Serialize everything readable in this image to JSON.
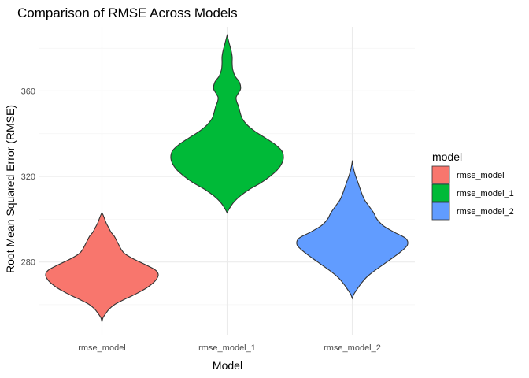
{
  "chart_data": {
    "type": "violin",
    "title": "Comparison of RMSE Across Models",
    "xlabel": "Model",
    "ylabel": "Root Mean Squared Error (RMSE)",
    "ylim": [
      246,
      390
    ],
    "yticks": [
      280,
      320,
      360
    ],
    "grid": true,
    "legend": {
      "title": "model",
      "placement": "right"
    },
    "categories": [
      "rmse_model",
      "rmse_model_1",
      "rmse_model_2"
    ],
    "series": [
      {
        "name": "rmse_model",
        "color": "#F8766D",
        "min": 252,
        "max": 303,
        "density": [
          [
            252,
            0.0
          ],
          [
            254,
            0.02
          ],
          [
            256,
            0.07
          ],
          [
            258,
            0.13
          ],
          [
            260,
            0.22
          ],
          [
            262,
            0.36
          ],
          [
            264,
            0.52
          ],
          [
            266,
            0.67
          ],
          [
            268,
            0.8
          ],
          [
            270,
            0.9
          ],
          [
            272,
            0.97
          ],
          [
            274,
            1.0
          ],
          [
            276,
            0.96
          ],
          [
            278,
            0.83
          ],
          [
            280,
            0.67
          ],
          [
            282,
            0.52
          ],
          [
            284,
            0.4
          ],
          [
            286,
            0.34
          ],
          [
            288,
            0.3
          ],
          [
            290,
            0.26
          ],
          [
            292,
            0.22
          ],
          [
            294,
            0.16
          ],
          [
            296,
            0.12
          ],
          [
            298,
            0.08
          ],
          [
            300,
            0.05
          ],
          [
            302,
            0.02
          ],
          [
            303,
            0.0
          ]
        ]
      },
      {
        "name": "rmse_model_1",
        "color": "#00BA38",
        "min": 303,
        "max": 386,
        "density": [
          [
            303,
            0.0
          ],
          [
            305,
            0.04
          ],
          [
            308,
            0.12
          ],
          [
            311,
            0.24
          ],
          [
            314,
            0.4
          ],
          [
            317,
            0.6
          ],
          [
            320,
            0.76
          ],
          [
            323,
            0.89
          ],
          [
            326,
            0.97
          ],
          [
            329,
            1.0
          ],
          [
            332,
            0.97
          ],
          [
            335,
            0.85
          ],
          [
            338,
            0.68
          ],
          [
            341,
            0.5
          ],
          [
            344,
            0.36
          ],
          [
            347,
            0.27
          ],
          [
            350,
            0.23
          ],
          [
            353,
            0.2
          ],
          [
            355,
            0.17
          ],
          [
            357,
            0.16
          ],
          [
            359,
            0.2
          ],
          [
            361,
            0.24
          ],
          [
            364,
            0.22
          ],
          [
            367,
            0.14
          ],
          [
            370,
            0.1
          ],
          [
            373,
            0.09
          ],
          [
            376,
            0.09
          ],
          [
            379,
            0.07
          ],
          [
            382,
            0.04
          ],
          [
            384,
            0.02
          ],
          [
            386,
            0.0
          ]
        ]
      },
      {
        "name": "rmse_model_2",
        "color": "#619CFF",
        "min": 263,
        "max": 327,
        "density": [
          [
            263,
            0.0
          ],
          [
            265,
            0.03
          ],
          [
            267,
            0.08
          ],
          [
            270,
            0.16
          ],
          [
            273,
            0.26
          ],
          [
            276,
            0.4
          ],
          [
            279,
            0.56
          ],
          [
            282,
            0.72
          ],
          [
            285,
            0.87
          ],
          [
            288,
            0.98
          ],
          [
            291,
            0.95
          ],
          [
            294,
            0.74
          ],
          [
            297,
            0.55
          ],
          [
            300,
            0.44
          ],
          [
            303,
            0.38
          ],
          [
            306,
            0.3
          ],
          [
            309,
            0.22
          ],
          [
            312,
            0.17
          ],
          [
            315,
            0.13
          ],
          [
            318,
            0.09
          ],
          [
            321,
            0.05
          ],
          [
            324,
            0.02
          ],
          [
            327,
            0.0
          ]
        ]
      }
    ]
  }
}
